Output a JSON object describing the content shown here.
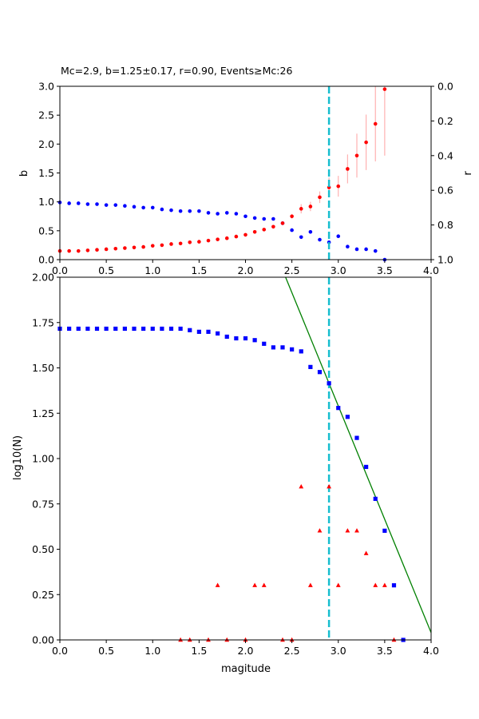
{
  "chart_data": [
    {
      "type": "scatter",
      "title": "Mc=2.9, b=1.25±0.17, r=0.90, Events≥Mc:26",
      "xlabel": "",
      "ylabel": "b",
      "y2label": "r",
      "xlim": [
        0,
        4
      ],
      "ylim": [
        0,
        3
      ],
      "y2lim": [
        1,
        0
      ],
      "xticks": [
        "0.0",
        "0.5",
        "1.0",
        "1.5",
        "2.0",
        "2.5",
        "3.0",
        "3.5",
        "4.0"
      ],
      "yticks": [
        "0.0",
        "0.5",
        "1.0",
        "1.5",
        "2.0",
        "2.5",
        "3.0"
      ],
      "y2ticks": [
        "0.0",
        "0.2",
        "0.4",
        "0.6",
        "0.8",
        "1.0"
      ],
      "mc_line": 2.9,
      "series": [
        {
          "color": "#ff0000",
          "x": [
            0.0,
            0.1,
            0.2,
            0.3,
            0.4,
            0.5,
            0.6,
            0.7,
            0.8,
            0.9,
            1.0,
            1.1,
            1.2,
            1.3,
            1.4,
            1.5,
            1.6,
            1.7,
            1.8,
            1.9,
            2.0,
            2.1,
            2.2,
            2.3,
            2.4,
            2.5,
            2.6,
            2.7,
            2.8,
            2.9,
            3.0,
            3.1,
            3.2,
            3.3,
            3.4,
            3.5
          ],
          "y": [
            0.15,
            0.15,
            0.15,
            0.16,
            0.17,
            0.18,
            0.19,
            0.2,
            0.21,
            0.22,
            0.24,
            0.25,
            0.27,
            0.28,
            0.3,
            0.31,
            0.33,
            0.35,
            0.37,
            0.4,
            0.43,
            0.48,
            0.52,
            0.57,
            0.63,
            0.75,
            0.88,
            0.92,
            1.08,
            1.25,
            1.27,
            1.57,
            1.8,
            2.03,
            2.35,
            2.95
          ],
          "err": [
            0,
            0,
            0,
            0,
            0,
            0,
            0,
            0,
            0,
            0,
            0,
            0,
            0,
            0,
            0,
            0,
            0,
            0,
            0,
            0,
            0,
            0,
            0,
            0,
            0,
            0.04,
            0.08,
            0.08,
            0.1,
            0.17,
            0.18,
            0.25,
            0.38,
            0.48,
            0.65,
            1.15
          ]
        },
        {
          "color": "#0000ff",
          "x": [
            0.0,
            0.1,
            0.2,
            0.3,
            0.4,
            0.5,
            0.6,
            0.7,
            0.8,
            0.9,
            1.0,
            1.1,
            1.2,
            1.3,
            1.4,
            1.5,
            1.6,
            1.7,
            1.8,
            1.9,
            2.0,
            2.1,
            2.2,
            2.3,
            2.4,
            2.5,
            2.6,
            2.7,
            2.8,
            2.9,
            3.0,
            3.1,
            3.2,
            3.3,
            3.4,
            3.5
          ],
          "r": [
            0.67,
            0.675,
            0.675,
            0.68,
            0.68,
            0.685,
            0.685,
            0.69,
            0.695,
            0.7,
            0.7,
            0.71,
            0.715,
            0.72,
            0.72,
            0.72,
            0.73,
            0.735,
            0.73,
            0.735,
            0.75,
            0.76,
            0.765,
            0.765,
            0.79,
            0.83,
            0.87,
            0.84,
            0.885,
            0.9,
            0.865,
            0.925,
            0.94,
            0.94,
            0.95,
            1.0
          ]
        }
      ]
    },
    {
      "type": "scatter",
      "title": "",
      "xlabel": "magitude",
      "ylabel": "log10(N)",
      "xlim": [
        0,
        4
      ],
      "ylim": [
        0,
        2
      ],
      "xticks": [
        "0.0",
        "0.5",
        "1.0",
        "1.5",
        "2.0",
        "2.5",
        "3.0",
        "3.5",
        "4.0"
      ],
      "yticks": [
        "0.00",
        "0.25",
        "0.50",
        "0.75",
        "1.00",
        "1.25",
        "1.50",
        "1.75",
        "2.00"
      ],
      "mc_line": 2.9,
      "fit_line": {
        "color": "#008000",
        "a": 5.04,
        "b": 1.25
      },
      "series": [
        {
          "color": "#0000ff",
          "marker": "square",
          "x": [
            0.0,
            0.1,
            0.2,
            0.3,
            0.4,
            0.5,
            0.6,
            0.7,
            0.8,
            0.9,
            1.0,
            1.1,
            1.2,
            1.3,
            1.4,
            1.5,
            1.6,
            1.7,
            1.8,
            1.9,
            2.0,
            2.1,
            2.2,
            2.3,
            2.4,
            2.5,
            2.6,
            2.7,
            2.8,
            2.9,
            3.0,
            3.1,
            3.2,
            3.3,
            3.4,
            3.5,
            3.6,
            3.7
          ],
          "y": [
            1.716,
            1.716,
            1.716,
            1.716,
            1.716,
            1.716,
            1.716,
            1.716,
            1.716,
            1.716,
            1.716,
            1.716,
            1.716,
            1.716,
            1.708,
            1.699,
            1.699,
            1.69,
            1.672,
            1.663,
            1.663,
            1.653,
            1.633,
            1.613,
            1.613,
            1.602,
            1.591,
            1.505,
            1.477,
            1.415,
            1.279,
            1.23,
            1.114,
            0.954,
            0.778,
            0.602,
            0.301,
            0.0
          ]
        },
        {
          "color": "#ff0000",
          "marker": "triangle",
          "x": [
            1.3,
            1.4,
            1.6,
            1.7,
            1.8,
            2.0,
            2.1,
            2.2,
            2.4,
            2.5,
            2.6,
            2.7,
            2.8,
            2.9,
            3.0,
            3.1,
            3.2,
            3.3,
            3.4,
            3.5,
            3.6
          ],
          "y": [
            0.0,
            0.0,
            0.0,
            0.301,
            0.0,
            0.0,
            0.301,
            0.301,
            0.0,
            0.0,
            0.845,
            0.301,
            0.602,
            0.845,
            0.301,
            0.602,
            0.602,
            0.477,
            0.301,
            0.301,
            0.0
          ]
        }
      ]
    }
  ]
}
